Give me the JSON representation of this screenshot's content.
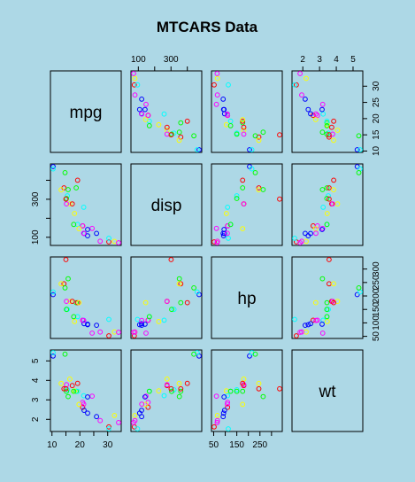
{
  "chart_data": {
    "type": "scatter-matrix",
    "title": "MTCARS Data",
    "variables": [
      "mpg",
      "disp",
      "hp",
      "wt"
    ],
    "ranges": {
      "mpg": [
        10.4,
        33.9
      ],
      "disp": [
        71.1,
        472
      ],
      "hp": [
        52,
        335
      ],
      "wt": [
        1.513,
        5.424
      ]
    },
    "ticks": {
      "mpg": [
        10,
        20,
        30
      ],
      "disp": [
        100,
        300
      ],
      "hp": [
        50,
        150,
        250
      ],
      "wt": [
        2,
        3,
        4,
        5
      ]
    },
    "tick_labels": {
      "mpg": [
        "10",
        "20",
        "30"
      ],
      "disp": [
        "100",
        "300"
      ],
      "hp": [
        "50",
        "150",
        "250"
      ],
      "wt": [
        "2",
        "3",
        "4",
        "5"
      ]
    },
    "axis_ticks": {
      "top": [
        {
          "var": "disp",
          "values": [
            100,
            200,
            300,
            400
          ],
          "labels": [
            "100",
            "",
            "300",
            ""
          ]
        },
        {
          "var": "wt",
          "values": [
            2,
            3,
            4,
            5
          ],
          "labels": [
            "2",
            "3",
            "4",
            "5"
          ]
        }
      ],
      "bottom": [
        {
          "var": "mpg",
          "values": [
            10,
            15,
            20,
            25,
            30
          ],
          "labels": [
            "10",
            "",
            "20",
            "",
            "30"
          ]
        },
        {
          "var": "hp",
          "values": [
            50,
            100,
            150,
            200,
            250,
            300
          ],
          "labels": [
            "50",
            "",
            "150",
            "",
            "250",
            ""
          ]
        }
      ],
      "left": [
        {
          "var": "disp",
          "values": [
            100,
            200,
            300,
            400
          ],
          "labels": [
            "100",
            "",
            "300",
            ""
          ]
        },
        {
          "var": "wt",
          "values": [
            2,
            3,
            4,
            5
          ],
          "labels": [
            "2",
            "3",
            "4",
            "5"
          ]
        }
      ],
      "right": [
        {
          "var": "mpg",
          "values": [
            10,
            15,
            20,
            25,
            30
          ],
          "labels": [
            "10",
            "15",
            "20",
            "25",
            "30"
          ]
        },
        {
          "var": "hp",
          "values": [
            50,
            100,
            150,
            200,
            250,
            300
          ],
          "labels": [
            "50",
            "100",
            "150",
            "200",
            "250",
            "300"
          ]
        }
      ]
    },
    "colors": [
      "#ff0000",
      "#ff00ff",
      "#0000ff",
      "#00ffff",
      "#00ff00",
      "#ffff00"
    ],
    "observations": [
      {
        "mpg": 21.0,
        "disp": 160.0,
        "hp": 110,
        "wt": 2.62
      },
      {
        "mpg": 21.0,
        "disp": 160.0,
        "hp": 110,
        "wt": 2.875
      },
      {
        "mpg": 22.8,
        "disp": 108.0,
        "hp": 93,
        "wt": 2.32
      },
      {
        "mpg": 21.4,
        "disp": 258.0,
        "hp": 110,
        "wt": 3.215
      },
      {
        "mpg": 18.7,
        "disp": 360.0,
        "hp": 175,
        "wt": 3.44
      },
      {
        "mpg": 18.1,
        "disp": 225.0,
        "hp": 105,
        "wt": 3.46
      },
      {
        "mpg": 14.3,
        "disp": 360.0,
        "hp": 245,
        "wt": 3.57
      },
      {
        "mpg": 24.4,
        "disp": 146.7,
        "hp": 62,
        "wt": 3.19
      },
      {
        "mpg": 22.8,
        "disp": 140.8,
        "hp": 95,
        "wt": 3.15
      },
      {
        "mpg": 19.2,
        "disp": 167.6,
        "hp": 123,
        "wt": 3.44
      },
      {
        "mpg": 17.8,
        "disp": 167.6,
        "hp": 123,
        "wt": 3.44
      },
      {
        "mpg": 16.4,
        "disp": 275.8,
        "hp": 180,
        "wt": 4.07
      },
      {
        "mpg": 17.3,
        "disp": 275.8,
        "hp": 180,
        "wt": 3.73
      },
      {
        "mpg": 15.2,
        "disp": 275.8,
        "hp": 180,
        "wt": 3.78
      },
      {
        "mpg": 10.4,
        "disp": 472.0,
        "hp": 205,
        "wt": 5.25
      },
      {
        "mpg": 10.4,
        "disp": 460.0,
        "hp": 215,
        "wt": 5.424
      },
      {
        "mpg": 14.7,
        "disp": 440.0,
        "hp": 230,
        "wt": 5.345
      },
      {
        "mpg": 32.4,
        "disp": 78.7,
        "hp": 66,
        "wt": 2.2
      },
      {
        "mpg": 30.4,
        "disp": 75.7,
        "hp": 52,
        "wt": 1.615
      },
      {
        "mpg": 33.9,
        "disp": 71.1,
        "hp": 65,
        "wt": 1.835
      },
      {
        "mpg": 21.5,
        "disp": 120.1,
        "hp": 97,
        "wt": 2.465
      },
      {
        "mpg": 15.5,
        "disp": 318.0,
        "hp": 150,
        "wt": 3.52
      },
      {
        "mpg": 15.2,
        "disp": 304.0,
        "hp": 150,
        "wt": 3.435
      },
      {
        "mpg": 13.3,
        "disp": 350.0,
        "hp": 245,
        "wt": 3.84
      },
      {
        "mpg": 19.2,
        "disp": 400.0,
        "hp": 175,
        "wt": 3.845
      },
      {
        "mpg": 27.3,
        "disp": 79.0,
        "hp": 66,
        "wt": 1.935
      },
      {
        "mpg": 26.0,
        "disp": 120.3,
        "hp": 91,
        "wt": 2.14
      },
      {
        "mpg": 30.4,
        "disp": 95.1,
        "hp": 113,
        "wt": 1.513
      },
      {
        "mpg": 15.8,
        "disp": 351.0,
        "hp": 264,
        "wt": 3.17
      },
      {
        "mpg": 19.7,
        "disp": 145.0,
        "hp": 175,
        "wt": 2.77
      },
      {
        "mpg": 15.0,
        "disp": 301.0,
        "hp": 335,
        "wt": 3.57
      },
      {
        "mpg": 21.4,
        "disp": 121.0,
        "hp": 109,
        "wt": 2.78
      }
    ]
  }
}
